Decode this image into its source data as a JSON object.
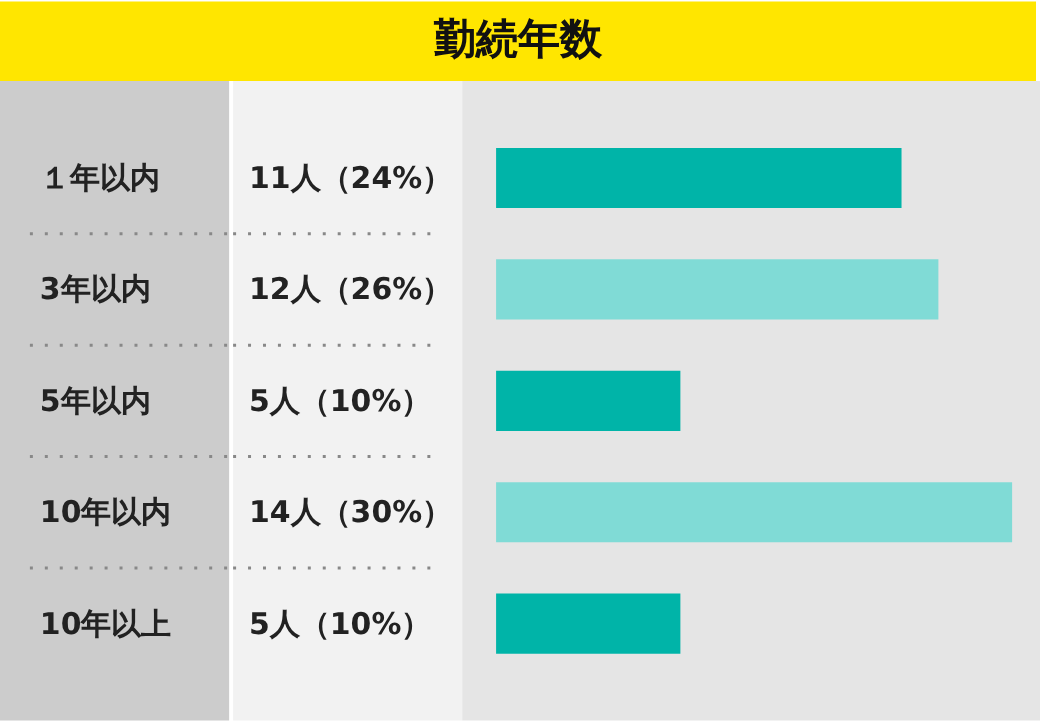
{
  "chart_data": {
    "type": "bar",
    "orientation": "horizontal",
    "title": "勤続年数",
    "categories": [
      "１年以内",
      "3年以内",
      "5年以内",
      "10年以内",
      "10年以上"
    ],
    "values": [
      11,
      12,
      5,
      14,
      5
    ],
    "colors": [
      "#00b4a8",
      "#80dbd6",
      "#00b4a8",
      "#80dbd6",
      "#00b4a8"
    ],
    "value_labels": [
      "11人（24%）",
      "12人（26%）",
      "5人（10%）",
      "14人（30%）",
      "5人（10%）"
    ]
  }
}
